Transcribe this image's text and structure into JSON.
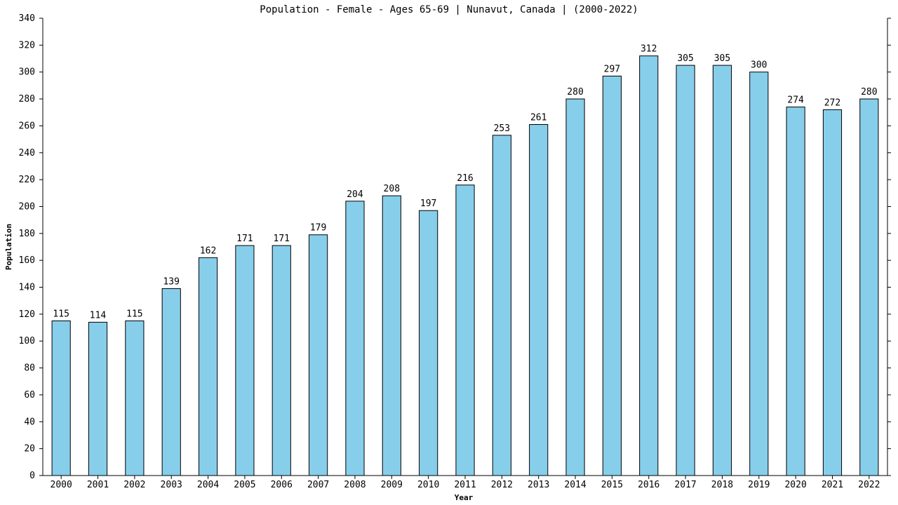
{
  "chart_data": {
    "type": "bar",
    "title": "Population - Female - Ages 65-69 | Nunavut, Canada |  (2000-2022)",
    "xlabel": "Year",
    "ylabel": "Population",
    "categories": [
      "2000",
      "2001",
      "2002",
      "2003",
      "2004",
      "2005",
      "2006",
      "2007",
      "2008",
      "2009",
      "2010",
      "2011",
      "2012",
      "2013",
      "2014",
      "2015",
      "2016",
      "2017",
      "2018",
      "2019",
      "2020",
      "2021",
      "2022"
    ],
    "values": [
      115,
      114,
      115,
      139,
      162,
      171,
      171,
      179,
      204,
      208,
      197,
      216,
      253,
      261,
      280,
      297,
      312,
      305,
      305,
      300,
      274,
      272,
      280
    ],
    "ylim": [
      0,
      340
    ],
    "yticks": [
      0,
      20,
      40,
      60,
      80,
      100,
      120,
      140,
      160,
      180,
      200,
      220,
      240,
      260,
      280,
      300,
      320,
      340
    ],
    "grid": false,
    "bar_color": "#87ceeb",
    "bar_edge_color": "#000000"
  }
}
